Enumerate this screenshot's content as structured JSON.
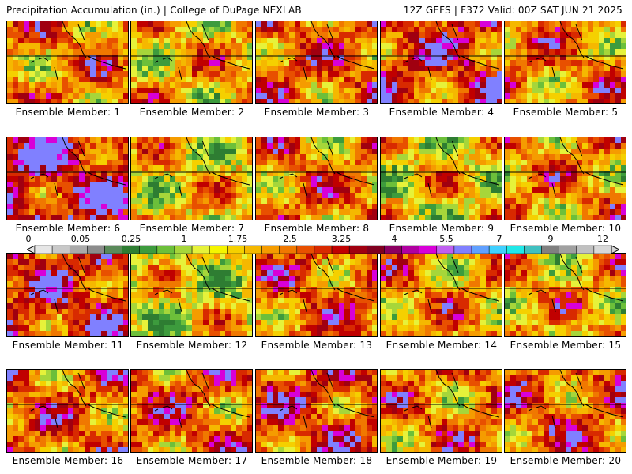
{
  "header": {
    "left_title": "Precipitation Accumulation (in.) | College of DuPage NEXLAB",
    "right_title": "12Z GEFS | F372 Valid: 00Z SAT JUN 21 2025"
  },
  "colorbar": {
    "labels": [
      "0",
      "0.05",
      "0.25",
      "1",
      "1.75",
      "2.5",
      "3.25",
      "4",
      "5.5",
      "7",
      "9",
      "12"
    ],
    "colors": [
      "#e6e6e6",
      "#c8c8c8",
      "#aaaaaa",
      "#8c8c8c",
      "#5a8a5a",
      "#2e7d32",
      "#3d9b3d",
      "#6cbf3a",
      "#a6d63a",
      "#e6f23a",
      "#f5f500",
      "#f5d000",
      "#f5b800",
      "#f59c00",
      "#f07800",
      "#e85000",
      "#d82a00",
      "#c00000",
      "#a00010",
      "#800020",
      "#8c0060",
      "#b000a0",
      "#d800d8",
      "#c060f0",
      "#8080ff",
      "#60a0ff",
      "#40d0ff",
      "#20e8e8",
      "#40c0c0",
      "#808080",
      "#a0a0a0",
      "#c0c0c0",
      "#d8d8d8"
    ]
  },
  "map": {
    "palette": [
      "#2e7d32",
      "#3d9b3d",
      "#6cbf3a",
      "#a6d63a",
      "#e6f23a",
      "#f5d000",
      "#f5b800",
      "#f59c00",
      "#f07800",
      "#e85000",
      "#d82a00",
      "#c00000",
      "#a00010",
      "#d800d8",
      "#8080ff"
    ]
  },
  "members": [
    {
      "label": "Ensemble Member: 1",
      "intensity": 0.55
    },
    {
      "label": "Ensemble Member: 2",
      "intensity": 0.45
    },
    {
      "label": "Ensemble Member: 3",
      "intensity": 0.6
    },
    {
      "label": "Ensemble Member: 4",
      "intensity": 0.7
    },
    {
      "label": "Ensemble Member: 5",
      "intensity": 0.55
    },
    {
      "label": "Ensemble Member: 6",
      "intensity": 0.78
    },
    {
      "label": "Ensemble Member: 7",
      "intensity": 0.4
    },
    {
      "label": "Ensemble Member: 8",
      "intensity": 0.55
    },
    {
      "label": "Ensemble Member: 9",
      "intensity": 0.38
    },
    {
      "label": "Ensemble Member: 10",
      "intensity": 0.52
    },
    {
      "label": "Ensemble Member: 11",
      "intensity": 0.72
    },
    {
      "label": "Ensemble Member: 12",
      "intensity": 0.35
    },
    {
      "label": "Ensemble Member: 13",
      "intensity": 0.6
    },
    {
      "label": "Ensemble Member: 14",
      "intensity": 0.5
    },
    {
      "label": "Ensemble Member: 15",
      "intensity": 0.48
    },
    {
      "label": "Ensemble Member: 16",
      "intensity": 0.6
    },
    {
      "label": "Ensemble Member: 17",
      "intensity": 0.62
    },
    {
      "label": "Ensemble Member: 18",
      "intensity": 0.68
    },
    {
      "label": "Ensemble Member: 19",
      "intensity": 0.55
    },
    {
      "label": "Ensemble Member: 20",
      "intensity": 0.62
    }
  ]
}
